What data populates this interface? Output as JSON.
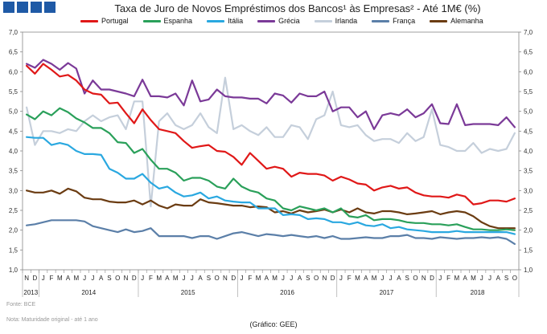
{
  "title": "Taxa de Juro de Novos Empréstimos dos Bancos¹ às Empresas² -  Até 1M€ (%)",
  "source": "Fonte: BCE",
  "note": "Nota: Maturidade original - até 1 ano",
  "credit": "(Gráfico: GEE)",
  "colors": {
    "Portugal": "#e01818",
    "Espanha": "#2aa05a",
    "Itália": "#2aa8e0",
    "Grécia": "#7b3a98",
    "Irlanda": "#c5cfdb",
    "França": "#5b7fa8",
    "Alemanha": "#6b3c12"
  },
  "chart_data": {
    "type": "line",
    "title": "Taxa de Juro de Novos Empréstimos dos Bancos¹ às Empresas² -  Até 1M€ (%)",
    "xlabel": "",
    "ylabel": "%",
    "ylim": [
      1.0,
      7.0
    ],
    "yticks": [
      "1,0",
      "1,5",
      "2,0",
      "2,5",
      "3,0",
      "3,5",
      "4,0",
      "4,5",
      "5,0",
      "5,5",
      "6,0",
      "6,5",
      "7,0"
    ],
    "month_labels": [
      "N",
      "D",
      "J",
      "F",
      "M",
      "A",
      "M",
      "J",
      "J",
      "A",
      "S",
      "O",
      "N",
      "D",
      "J",
      "F",
      "M",
      "A",
      "M",
      "J",
      "J",
      "A",
      "S",
      "O",
      "N",
      "D",
      "J",
      "F",
      "M",
      "A",
      "M",
      "J",
      "J",
      "A",
      "S",
      "O",
      "N",
      "D",
      "J",
      "F",
      "M",
      "A",
      "M",
      "J",
      "J",
      "A",
      "S",
      "O",
      "N",
      "D",
      "J",
      "F",
      "M",
      "A",
      "M",
      "J",
      "J",
      "A",
      "S",
      "O"
    ],
    "years": [
      {
        "label": "2013",
        "start": 0,
        "end": 1
      },
      {
        "label": "2014",
        "start": 2,
        "end": 13
      },
      {
        "label": "2015",
        "start": 14,
        "end": 25
      },
      {
        "label": "2016",
        "start": 26,
        "end": 37
      },
      {
        "label": "2017",
        "start": 38,
        "end": 49
      },
      {
        "label": "2018",
        "start": 50,
        "end": 59
      }
    ],
    "legend": [
      "Portugal",
      "Espanha",
      "Itália",
      "Grécia",
      "Irlanda",
      "França",
      "Alemanha"
    ],
    "series": [
      {
        "name": "Portugal",
        "values": [
          6.15,
          5.95,
          6.2,
          6.05,
          5.88,
          5.92,
          5.78,
          5.55,
          5.45,
          5.42,
          5.2,
          5.22,
          4.95,
          4.7,
          5.05,
          4.78,
          4.55,
          4.5,
          4.45,
          4.25,
          4.08,
          4.12,
          4.15,
          4.0,
          3.98,
          3.85,
          3.65,
          3.95,
          3.75,
          3.55,
          3.6,
          3.55,
          3.35,
          3.45,
          3.42,
          3.42,
          3.38,
          3.25,
          3.35,
          3.28,
          3.18,
          3.15,
          3.0,
          3.08,
          3.12,
          3.05,
          3.08,
          2.95,
          2.88,
          2.85,
          2.85,
          2.82,
          2.9,
          2.85,
          2.65,
          2.68,
          2.75,
          2.75,
          2.72,
          2.8
        ]
      },
      {
        "name": "Espanha",
        "values": [
          4.92,
          4.8,
          5.0,
          4.9,
          5.08,
          4.98,
          4.82,
          4.72,
          4.58,
          4.58,
          4.45,
          4.22,
          4.2,
          3.95,
          4.05,
          3.78,
          3.55,
          3.55,
          3.45,
          3.25,
          3.32,
          3.32,
          3.25,
          3.1,
          3.05,
          3.3,
          3.1,
          3.0,
          2.95,
          2.8,
          2.75,
          2.55,
          2.5,
          2.6,
          2.55,
          2.5,
          2.55,
          2.45,
          2.55,
          2.35,
          2.32,
          2.38,
          2.25,
          2.28,
          2.28,
          2.25,
          2.2,
          2.18,
          2.18,
          2.15,
          2.15,
          2.12,
          2.15,
          2.08,
          2.02,
          2.02,
          2.0,
          2.0,
          2.02,
          2.0
        ]
      },
      {
        "name": "Itália",
        "values": [
          4.35,
          4.33,
          4.33,
          4.15,
          4.2,
          4.15,
          4.0,
          3.92,
          3.92,
          3.9,
          3.55,
          3.45,
          3.3,
          3.3,
          3.42,
          3.2,
          3.05,
          3.1,
          2.95,
          2.85,
          2.88,
          2.95,
          2.8,
          2.85,
          2.75,
          2.72,
          2.7,
          2.7,
          2.55,
          2.55,
          2.55,
          2.38,
          2.4,
          2.38,
          2.28,
          2.3,
          2.28,
          2.2,
          2.2,
          2.15,
          2.2,
          2.12,
          2.1,
          2.15,
          2.05,
          2.08,
          2.02,
          2.0,
          1.98,
          1.95,
          1.95,
          1.95,
          1.98,
          1.95,
          1.95,
          1.95,
          1.95,
          1.95,
          1.95,
          1.9
        ]
      },
      {
        "name": "Grécia",
        "values": [
          6.2,
          6.1,
          6.3,
          6.2,
          6.05,
          6.22,
          6.08,
          5.45,
          5.78,
          5.55,
          5.55,
          5.5,
          5.45,
          5.38,
          5.8,
          5.38,
          5.38,
          5.35,
          5.45,
          5.15,
          5.78,
          5.25,
          5.3,
          5.55,
          5.38,
          5.35,
          5.35,
          5.32,
          5.32,
          5.2,
          5.45,
          5.4,
          5.22,
          5.45,
          5.38,
          5.38,
          5.5,
          5.0,
          5.1,
          5.1,
          4.85,
          5.0,
          4.55,
          4.9,
          4.95,
          4.9,
          5.05,
          4.85,
          4.95,
          5.18,
          4.7,
          4.68,
          5.18,
          4.65,
          4.68,
          4.68,
          4.68,
          4.65,
          4.85,
          4.6
        ]
      },
      {
        "name": "Irlanda",
        "values": [
          5.1,
          4.15,
          4.5,
          4.5,
          4.45,
          4.55,
          4.5,
          4.75,
          4.9,
          4.75,
          4.85,
          4.9,
          4.55,
          5.25,
          5.25,
          2.6,
          4.75,
          4.95,
          4.65,
          4.55,
          4.65,
          4.95,
          4.6,
          4.45,
          5.85,
          4.55,
          4.65,
          4.5,
          4.4,
          4.6,
          4.35,
          4.35,
          4.65,
          4.6,
          4.3,
          4.8,
          4.9,
          5.5,
          4.65,
          4.6,
          4.65,
          4.4,
          4.25,
          4.3,
          4.3,
          4.2,
          4.45,
          4.25,
          4.35,
          5.05,
          4.15,
          4.1,
          4.0,
          4.0,
          4.2,
          3.95,
          4.05,
          4.0,
          4.05,
          4.45
        ]
      },
      {
        "name": "França",
        "values": [
          2.12,
          2.15,
          2.2,
          2.25,
          2.25,
          2.25,
          2.25,
          2.22,
          2.1,
          2.05,
          2.0,
          1.95,
          2.02,
          1.95,
          1.98,
          2.05,
          1.85,
          1.85,
          1.85,
          1.85,
          1.8,
          1.85,
          1.85,
          1.78,
          1.85,
          1.92,
          1.95,
          1.9,
          1.85,
          1.9,
          1.88,
          1.85,
          1.88,
          1.85,
          1.82,
          1.85,
          1.8,
          1.85,
          1.78,
          1.78,
          1.8,
          1.82,
          1.8,
          1.8,
          1.85,
          1.85,
          1.88,
          1.8,
          1.8,
          1.78,
          1.82,
          1.8,
          1.78,
          1.8,
          1.8,
          1.82,
          1.8,
          1.82,
          1.78,
          1.65
        ]
      },
      {
        "name": "Alemanha",
        "values": [
          3.0,
          2.95,
          2.95,
          3.0,
          2.92,
          3.05,
          2.98,
          2.82,
          2.78,
          2.78,
          2.72,
          2.7,
          2.7,
          2.75,
          2.65,
          2.75,
          2.62,
          2.55,
          2.65,
          2.62,
          2.62,
          2.78,
          2.7,
          2.68,
          2.65,
          2.62,
          2.62,
          2.58,
          2.6,
          2.58,
          2.45,
          2.48,
          2.42,
          2.5,
          2.45,
          2.48,
          2.52,
          2.45,
          2.52,
          2.45,
          2.55,
          2.45,
          2.42,
          2.48,
          2.48,
          2.45,
          2.4,
          2.42,
          2.45,
          2.48,
          2.4,
          2.45,
          2.48,
          2.45,
          2.35,
          2.2,
          2.1,
          2.05,
          2.05,
          2.05
        ]
      }
    ]
  }
}
